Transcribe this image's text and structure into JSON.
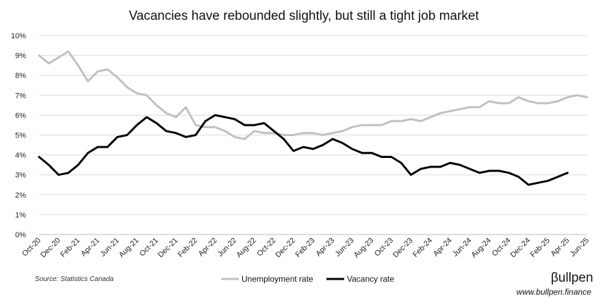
{
  "chart_data": {
    "type": "line",
    "title": "Vacancies have rebounded slightly, but still a tight job market",
    "xlabel": "",
    "ylabel": "",
    "ylim": [
      0,
      10
    ],
    "y_ticks": [
      "0%",
      "1%",
      "2%",
      "3%",
      "4%",
      "5%",
      "6%",
      "7%",
      "8%",
      "9%",
      "10%"
    ],
    "grid": true,
    "legend_position": "bottom",
    "x": [
      "Oct-20",
      "Nov-20",
      "Dec-20",
      "Jan-21",
      "Feb-21",
      "Mar-21",
      "Apr-21",
      "May-21",
      "Jun-21",
      "Jul-21",
      "Aug-21",
      "Sep-21",
      "Oct-21",
      "Nov-21",
      "Dec-21",
      "Jan-22",
      "Feb-22",
      "Mar-22",
      "Apr-22",
      "May-22",
      "Jun-22",
      "Jul-22",
      "Aug-22",
      "Sep-22",
      "Oct-22",
      "Nov-22",
      "Dec-22",
      "Jan-23",
      "Feb-23",
      "Mar-23",
      "Apr-23",
      "May-23",
      "Jun-23",
      "Jul-23",
      "Aug-23",
      "Sep-23",
      "Oct-23",
      "Nov-23",
      "Dec-23",
      "Jan-24",
      "Feb-24",
      "Mar-24",
      "Apr-24",
      "May-24",
      "Jun-24",
      "Jul-24",
      "Aug-24",
      "Sep-24",
      "Oct-24",
      "Nov-24",
      "Dec-24",
      "Jan-25",
      "Feb-25",
      "Mar-25",
      "Apr-25",
      "May-25",
      "Jun-25"
    ],
    "x_tick_labels": [
      "Oct-20",
      "Dec-20",
      "Feb-21",
      "Apr-21",
      "Jun-21",
      "Aug-21",
      "Oct-21",
      "Dec-21",
      "Feb-22",
      "Apr-22",
      "Jun-22",
      "Aug-22",
      "Oct-22",
      "Dec-22",
      "Feb-23",
      "Apr-23",
      "Jun-23",
      "Aug-23",
      "Oct-23",
      "Dec-23",
      "Feb-24",
      "Apr-24",
      "Jun-24",
      "Aug-24",
      "Oct-24",
      "Dec-24",
      "Feb-25",
      "Apr-25",
      "Jun-25"
    ],
    "series": [
      {
        "name": "Unemployment rate",
        "color": "#c0c0c0",
        "values": [
          9.0,
          8.6,
          8.9,
          9.2,
          8.5,
          7.7,
          8.2,
          8.3,
          7.9,
          7.4,
          7.1,
          7.0,
          6.5,
          6.1,
          5.9,
          6.4,
          5.5,
          5.4,
          5.4,
          5.2,
          4.9,
          4.8,
          5.2,
          5.1,
          5.1,
          5.0,
          5.0,
          5.1,
          5.1,
          5.0,
          5.1,
          5.2,
          5.4,
          5.5,
          5.5,
          5.5,
          5.7,
          5.7,
          5.8,
          5.7,
          5.9,
          6.1,
          6.2,
          6.3,
          6.4,
          6.4,
          6.7,
          6.6,
          6.6,
          6.9,
          6.7,
          6.6,
          6.6,
          6.7,
          6.9,
          7.0,
          6.9
        ]
      },
      {
        "name": "Vacancy rate",
        "color": "#000000",
        "values": [
          3.9,
          3.5,
          3.0,
          3.1,
          3.5,
          4.1,
          4.4,
          4.4,
          4.9,
          5.0,
          5.5,
          5.9,
          5.6,
          5.2,
          5.1,
          4.9,
          5.0,
          5.7,
          6.0,
          5.9,
          5.8,
          5.5,
          5.5,
          5.6,
          5.2,
          4.8,
          4.2,
          4.4,
          4.3,
          4.5,
          4.8,
          4.6,
          4.3,
          4.1,
          4.1,
          3.9,
          3.9,
          3.6,
          3.0,
          3.3,
          3.4,
          3.4,
          3.6,
          3.5,
          3.3,
          3.1,
          3.2,
          3.2,
          3.1,
          2.9,
          2.5,
          2.6,
          2.7,
          2.9,
          3.1,
          null,
          null
        ]
      }
    ],
    "source": "Source: Statistics Canada"
  },
  "brand": {
    "name": "βullpen",
    "url": "www.bullpen.finance"
  }
}
